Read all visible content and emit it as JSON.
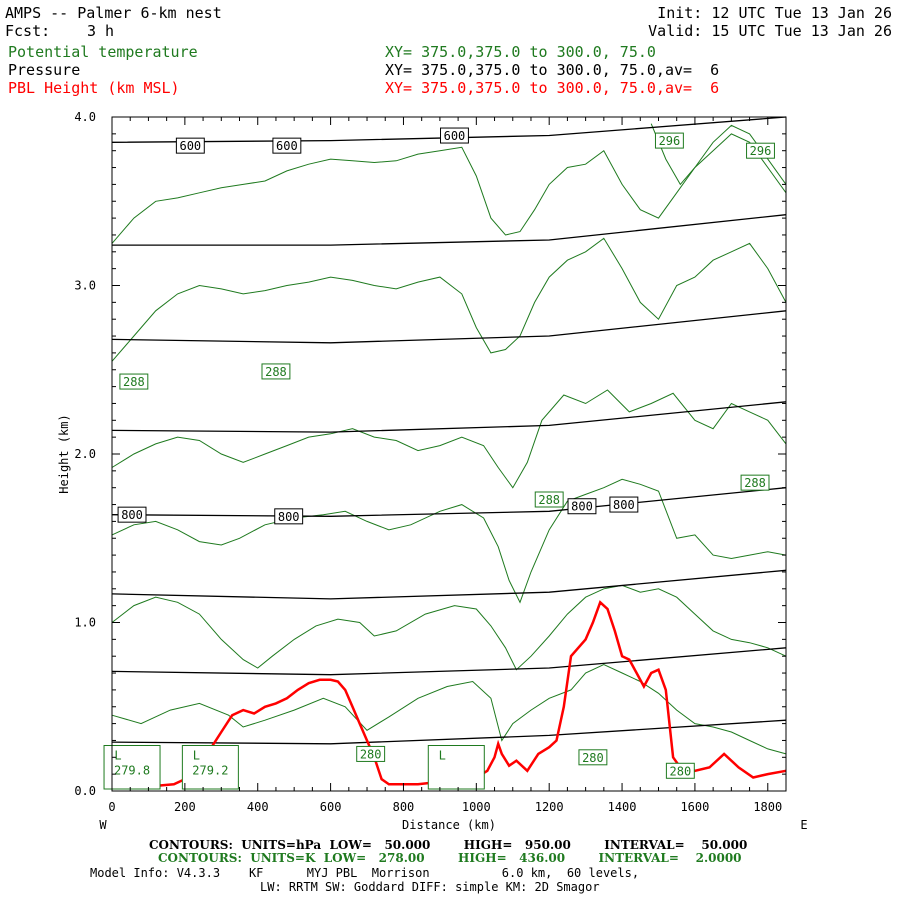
{
  "header": {
    "title": "AMPS -- Palmer 6-km nest",
    "init_time": "Init: 12 UTC Tue 13 Jan 26",
    "fcst_label": "Fcst:",
    "fcst_value": "3 h",
    "valid_time": "Valid: 15 UTC Tue 13 Jan 26",
    "field1_name": "Potential temperature",
    "field1_xsec": "XY= 375.0,375.0 to 300.0, 75.0",
    "field2_name": "Pressure",
    "field2_xsec": "XY= 375.0,375.0 to 300.0, 75.0,av=  6",
    "field3_name": "PBL Height (km MSL)",
    "field3_xsec": "XY= 375.0,375.0 to 300.0, 75.0,av=  6"
  },
  "footer": {
    "contours_p": "CONTOURS:  UNITS=hPa  LOW=   50.000        HIGH=   950.00        INTERVAL=    50.000",
    "contours_t": "CONTOURS:  UNITS=K  LOW=   278.00        HIGH=   436.00        INTERVAL=    2.0000",
    "model_info": "Model Info: V4.3.3    KF      MYJ PBL  Morrison          6.0 km,  60 levels,",
    "model_info2": "LW: RRTM SW: Goddard DIFF: simple KM: 2D Smagor"
  },
  "colors": {
    "pressure": "#000000",
    "theta": "#1f7a1f",
    "pbl": "#ff0000"
  },
  "chart_data": {
    "type": "line",
    "xlabel": "Distance (km)",
    "ylabel": "Height (km)",
    "xlim": [
      0,
      1850
    ],
    "ylim": [
      0,
      4
    ],
    "x_ticks": [
      0,
      200,
      400,
      600,
      800,
      1000,
      1200,
      1400,
      1600,
      1800
    ],
    "y_ticks": [
      0.0,
      1.0,
      2.0,
      3.0,
      4.0
    ],
    "y_tick_labels": [
      "0.0",
      "1.0",
      "2.0",
      "3.0",
      "4.0"
    ],
    "left_end_label": "W",
    "right_end_label": "E",
    "pressure_series": [
      {
        "name": "950 hPa",
        "x": [
          0,
          600,
          1200,
          1850
        ],
        "y": [
          0.29,
          0.28,
          0.33,
          0.42
        ]
      },
      {
        "name": "900 hPa",
        "x": [
          0,
          600,
          1200,
          1850
        ],
        "y": [
          0.71,
          0.69,
          0.73,
          0.85
        ]
      },
      {
        "name": "850 hPa",
        "x": [
          0,
          600,
          1200,
          1850
        ],
        "y": [
          1.17,
          1.14,
          1.18,
          1.31
        ]
      },
      {
        "name": "800 hPa",
        "x": [
          0,
          600,
          1200,
          1850
        ],
        "y": [
          1.64,
          1.63,
          1.66,
          1.8
        ]
      },
      {
        "name": "750 hPa",
        "x": [
          0,
          600,
          1200,
          1850
        ],
        "y": [
          2.14,
          2.13,
          2.17,
          2.31
        ]
      },
      {
        "name": "700 hPa",
        "x": [
          0,
          600,
          1200,
          1850
        ],
        "y": [
          2.68,
          2.66,
          2.7,
          2.85
        ]
      },
      {
        "name": "650 hPa",
        "x": [
          0,
          600,
          1200,
          1850
        ],
        "y": [
          3.24,
          3.24,
          3.27,
          3.42
        ]
      },
      {
        "name": "600 hPa",
        "x": [
          0,
          600,
          1200,
          1850
        ],
        "y": [
          3.85,
          3.86,
          3.89,
          4.0
        ]
      }
    ],
    "pressure_labels": [
      {
        "text": "600",
        "x": 215,
        "y": 3.83
      },
      {
        "text": "600",
        "x": 480,
        "y": 3.83
      },
      {
        "text": "600",
        "x": 940,
        "y": 3.89
      },
      {
        "text": "800",
        "x": 55,
        "y": 1.64
      },
      {
        "text": "800",
        "x": 485,
        "y": 1.63
      },
      {
        "text": "800",
        "x": 1290,
        "y": 1.69
      },
      {
        "text": "800",
        "x": 1405,
        "y": 1.7
      }
    ],
    "theta_series": [
      {
        "name": "theta-282",
        "x": [
          0,
          80,
          160,
          240,
          320,
          360,
          420,
          500,
          580,
          640,
          700,
          760,
          840,
          920,
          990,
          1040,
          1070,
          1100,
          1150,
          1200,
          1260,
          1300,
          1350,
          1400,
          1450,
          1500,
          1550,
          1600,
          1650,
          1700,
          1750,
          1800,
          1850
        ],
        "y": [
          0.45,
          0.4,
          0.48,
          0.52,
          0.45,
          0.38,
          0.42,
          0.48,
          0.55,
          0.5,
          0.36,
          0.44,
          0.55,
          0.62,
          0.65,
          0.55,
          0.3,
          0.4,
          0.48,
          0.55,
          0.6,
          0.7,
          0.75,
          0.7,
          0.65,
          0.58,
          0.48,
          0.4,
          0.38,
          0.35,
          0.3,
          0.25,
          0.22
        ]
      },
      {
        "name": "theta-286",
        "x": [
          0,
          60,
          120,
          180,
          240,
          300,
          360,
          400,
          440,
          500,
          560,
          620,
          680,
          720,
          780,
          860,
          940,
          1000,
          1040,
          1080,
          1110,
          1150,
          1200,
          1250,
          1300,
          1350,
          1400,
          1450,
          1500,
          1550,
          1600,
          1650,
          1700,
          1750,
          1800,
          1850
        ],
        "y": [
          1.0,
          1.1,
          1.15,
          1.12,
          1.05,
          0.9,
          0.78,
          0.73,
          0.8,
          0.9,
          0.98,
          1.02,
          1.0,
          0.92,
          0.95,
          1.05,
          1.1,
          1.08,
          0.98,
          0.85,
          0.72,
          0.8,
          0.92,
          1.05,
          1.15,
          1.2,
          1.22,
          1.18,
          1.2,
          1.15,
          1.05,
          0.95,
          0.9,
          0.88,
          0.85,
          0.8
        ]
      },
      {
        "name": "theta-288",
        "x": [
          0,
          60,
          120,
          180,
          240,
          300,
          350,
          420,
          500,
          580,
          640,
          700,
          760,
          820,
          900,
          960,
          1020,
          1060,
          1090,
          1120,
          1150,
          1200,
          1250,
          1300,
          1350,
          1400,
          1450,
          1500,
          1550,
          1600,
          1650,
          1700,
          1750,
          1800,
          1850
        ],
        "y": [
          1.52,
          1.58,
          1.6,
          1.55,
          1.48,
          1.46,
          1.5,
          1.58,
          1.62,
          1.64,
          1.66,
          1.6,
          1.55,
          1.58,
          1.66,
          1.7,
          1.62,
          1.45,
          1.25,
          1.12,
          1.3,
          1.55,
          1.72,
          1.76,
          1.8,
          1.85,
          1.82,
          1.78,
          1.5,
          1.52,
          1.4,
          1.38,
          1.4,
          1.42,
          1.4
        ]
      },
      {
        "name": "theta-290",
        "x": [
          0,
          60,
          120,
          180,
          240,
          300,
          360,
          420,
          480,
          540,
          600,
          660,
          720,
          780,
          840,
          900,
          960,
          1020,
          1060,
          1100,
          1140,
          1180,
          1240,
          1300,
          1360,
          1420,
          1480,
          1540,
          1600,
          1650,
          1700,
          1750,
          1800,
          1850
        ],
        "y": [
          1.92,
          2.0,
          2.06,
          2.1,
          2.08,
          2.0,
          1.95,
          2.0,
          2.05,
          2.1,
          2.12,
          2.15,
          2.1,
          2.08,
          2.02,
          2.05,
          2.1,
          2.05,
          1.92,
          1.8,
          1.95,
          2.2,
          2.35,
          2.3,
          2.38,
          2.25,
          2.3,
          2.36,
          2.2,
          2.15,
          2.3,
          2.25,
          2.2,
          2.06
        ]
      },
      {
        "name": "theta-292",
        "x": [
          0,
          60,
          120,
          180,
          240,
          300,
          360,
          420,
          480,
          540,
          600,
          660,
          720,
          780,
          840,
          900,
          960,
          1000,
          1040,
          1080,
          1120,
          1160,
          1200,
          1250,
          1300,
          1350,
          1400,
          1450,
          1500,
          1550,
          1600,
          1650,
          1700,
          1750,
          1800,
          1850
        ],
        "y": [
          2.55,
          2.7,
          2.85,
          2.95,
          3.0,
          2.98,
          2.95,
          2.97,
          3.0,
          3.02,
          3.05,
          3.03,
          3.0,
          2.98,
          3.02,
          3.05,
          2.95,
          2.75,
          2.6,
          2.62,
          2.7,
          2.9,
          3.05,
          3.15,
          3.2,
          3.28,
          3.1,
          2.9,
          2.8,
          3.0,
          3.05,
          3.15,
          3.2,
          3.25,
          3.1,
          2.9
        ]
      },
      {
        "name": "theta-294",
        "x": [
          0,
          60,
          120,
          180,
          240,
          300,
          360,
          420,
          480,
          540,
          600,
          660,
          720,
          780,
          840,
          900,
          960,
          1000,
          1040,
          1080,
          1120,
          1160,
          1200,
          1250,
          1300,
          1350,
          1400,
          1450,
          1500,
          1550,
          1600,
          1650,
          1700,
          1750,
          1800,
          1850
        ],
        "y": [
          3.25,
          3.4,
          3.5,
          3.52,
          3.55,
          3.58,
          3.6,
          3.62,
          3.68,
          3.72,
          3.75,
          3.74,
          3.73,
          3.74,
          3.78,
          3.8,
          3.82,
          3.65,
          3.4,
          3.3,
          3.32,
          3.45,
          3.6,
          3.7,
          3.72,
          3.8,
          3.6,
          3.45,
          3.4,
          3.55,
          3.7,
          3.8,
          3.9,
          3.85,
          3.7,
          3.55
        ]
      },
      {
        "name": "theta-296",
        "x": [
          1480,
          1520,
          1560,
          1600,
          1650,
          1700,
          1750,
          1800,
          1850
        ],
        "y": [
          3.96,
          3.75,
          3.6,
          3.7,
          3.85,
          3.95,
          3.9,
          3.75,
          3.6
        ]
      }
    ],
    "theta_labels": [
      {
        "text": "288",
        "x": 60,
        "y": 2.43
      },
      {
        "text": "288",
        "x": 450,
        "y": 2.49
      },
      {
        "text": "288",
        "x": 1200,
        "y": 1.73
      },
      {
        "text": "288",
        "x": 1765,
        "y": 1.83
      },
      {
        "text": "296",
        "x": 1530,
        "y": 3.86
      },
      {
        "text": "296",
        "x": 1780,
        "y": 3.8
      },
      {
        "text": "280",
        "x": 710,
        "y": 0.22
      },
      {
        "text": "280",
        "x": 1320,
        "y": 0.2
      },
      {
        "text": "280",
        "x": 1560,
        "y": 0.12
      }
    ],
    "low_markers": [
      {
        "letter": "L",
        "value": "279.8",
        "x": 55
      },
      {
        "letter": "L",
        "value": "279.2",
        "x": 270
      },
      {
        "letter": "L",
        "value": "",
        "x": 945
      }
    ],
    "pbl_series": {
      "name": "PBL Height (km MSL)",
      "x": [
        0,
        60,
        120,
        170,
        210,
        240,
        270,
        300,
        330,
        360,
        390,
        420,
        450,
        480,
        510,
        540,
        570,
        600,
        620,
        640,
        660,
        680,
        700,
        720,
        740,
        760,
        780,
        800,
        840,
        880,
        920,
        960,
        1000,
        1030,
        1050,
        1060,
        1070,
        1090,
        1110,
        1140,
        1170,
        1200,
        1220,
        1240,
        1260,
        1280,
        1300,
        1320,
        1340,
        1360,
        1380,
        1400,
        1420,
        1440,
        1460,
        1480,
        1500,
        1520,
        1540,
        1560,
        1600,
        1640,
        1680,
        1720,
        1760,
        1800,
        1850
      ],
      "y": [
        0.02,
        0.02,
        0.03,
        0.04,
        0.08,
        0.15,
        0.25,
        0.35,
        0.45,
        0.48,
        0.46,
        0.5,
        0.52,
        0.55,
        0.6,
        0.64,
        0.66,
        0.66,
        0.65,
        0.6,
        0.5,
        0.4,
        0.3,
        0.2,
        0.07,
        0.04,
        0.04,
        0.04,
        0.04,
        0.05,
        0.05,
        0.06,
        0.08,
        0.12,
        0.2,
        0.28,
        0.22,
        0.15,
        0.18,
        0.12,
        0.22,
        0.26,
        0.3,
        0.5,
        0.8,
        0.85,
        0.9,
        1.0,
        1.12,
        1.08,
        0.95,
        0.8,
        0.78,
        0.7,
        0.62,
        0.7,
        0.72,
        0.6,
        0.2,
        0.14,
        0.12,
        0.14,
        0.22,
        0.14,
        0.08,
        0.1,
        0.12
      ]
    }
  }
}
